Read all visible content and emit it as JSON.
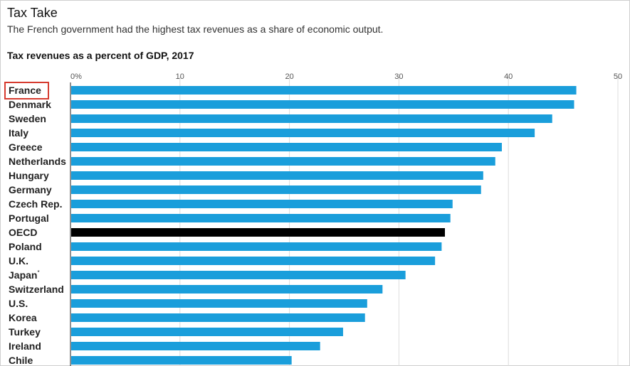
{
  "header": {
    "title": "Tax Take",
    "subtitle": "The French government had the highest tax revenues as a share of economic output."
  },
  "chart_data": {
    "type": "bar",
    "orientation": "horizontal",
    "title": "Tax revenues as a percent of GDP, 2017",
    "xlabel": "",
    "ylabel": "",
    "xlim": [
      0,
      50
    ],
    "ticks": [
      0,
      10,
      20,
      30,
      40,
      50
    ],
    "tick_labels": [
      "0%",
      "10",
      "20",
      "30",
      "40",
      "50"
    ],
    "grid": true,
    "highlighted_category": "France",
    "categories": [
      "France",
      "Denmark",
      "Sweden",
      "Italy",
      "Greece",
      "Netherlands",
      "Hungary",
      "Germany",
      "Czech Rep.",
      "Portugal",
      "OECD",
      "Poland",
      "U.K.",
      "Japan",
      "Switzerland",
      "U.S.",
      "Korea",
      "Turkey",
      "Ireland",
      "Chile"
    ],
    "category_notes": {
      "Japan": "*"
    },
    "values": [
      46.2,
      46.0,
      44.0,
      42.4,
      39.4,
      38.8,
      37.7,
      37.5,
      34.9,
      34.7,
      34.2,
      33.9,
      33.3,
      30.6,
      28.5,
      27.1,
      26.9,
      24.9,
      22.8,
      20.2
    ],
    "colors": {
      "bar": "#1a9edb",
      "oecd": "#000000",
      "highlight_box": "#d63b2f",
      "grid": "#dcdcdc"
    }
  }
}
